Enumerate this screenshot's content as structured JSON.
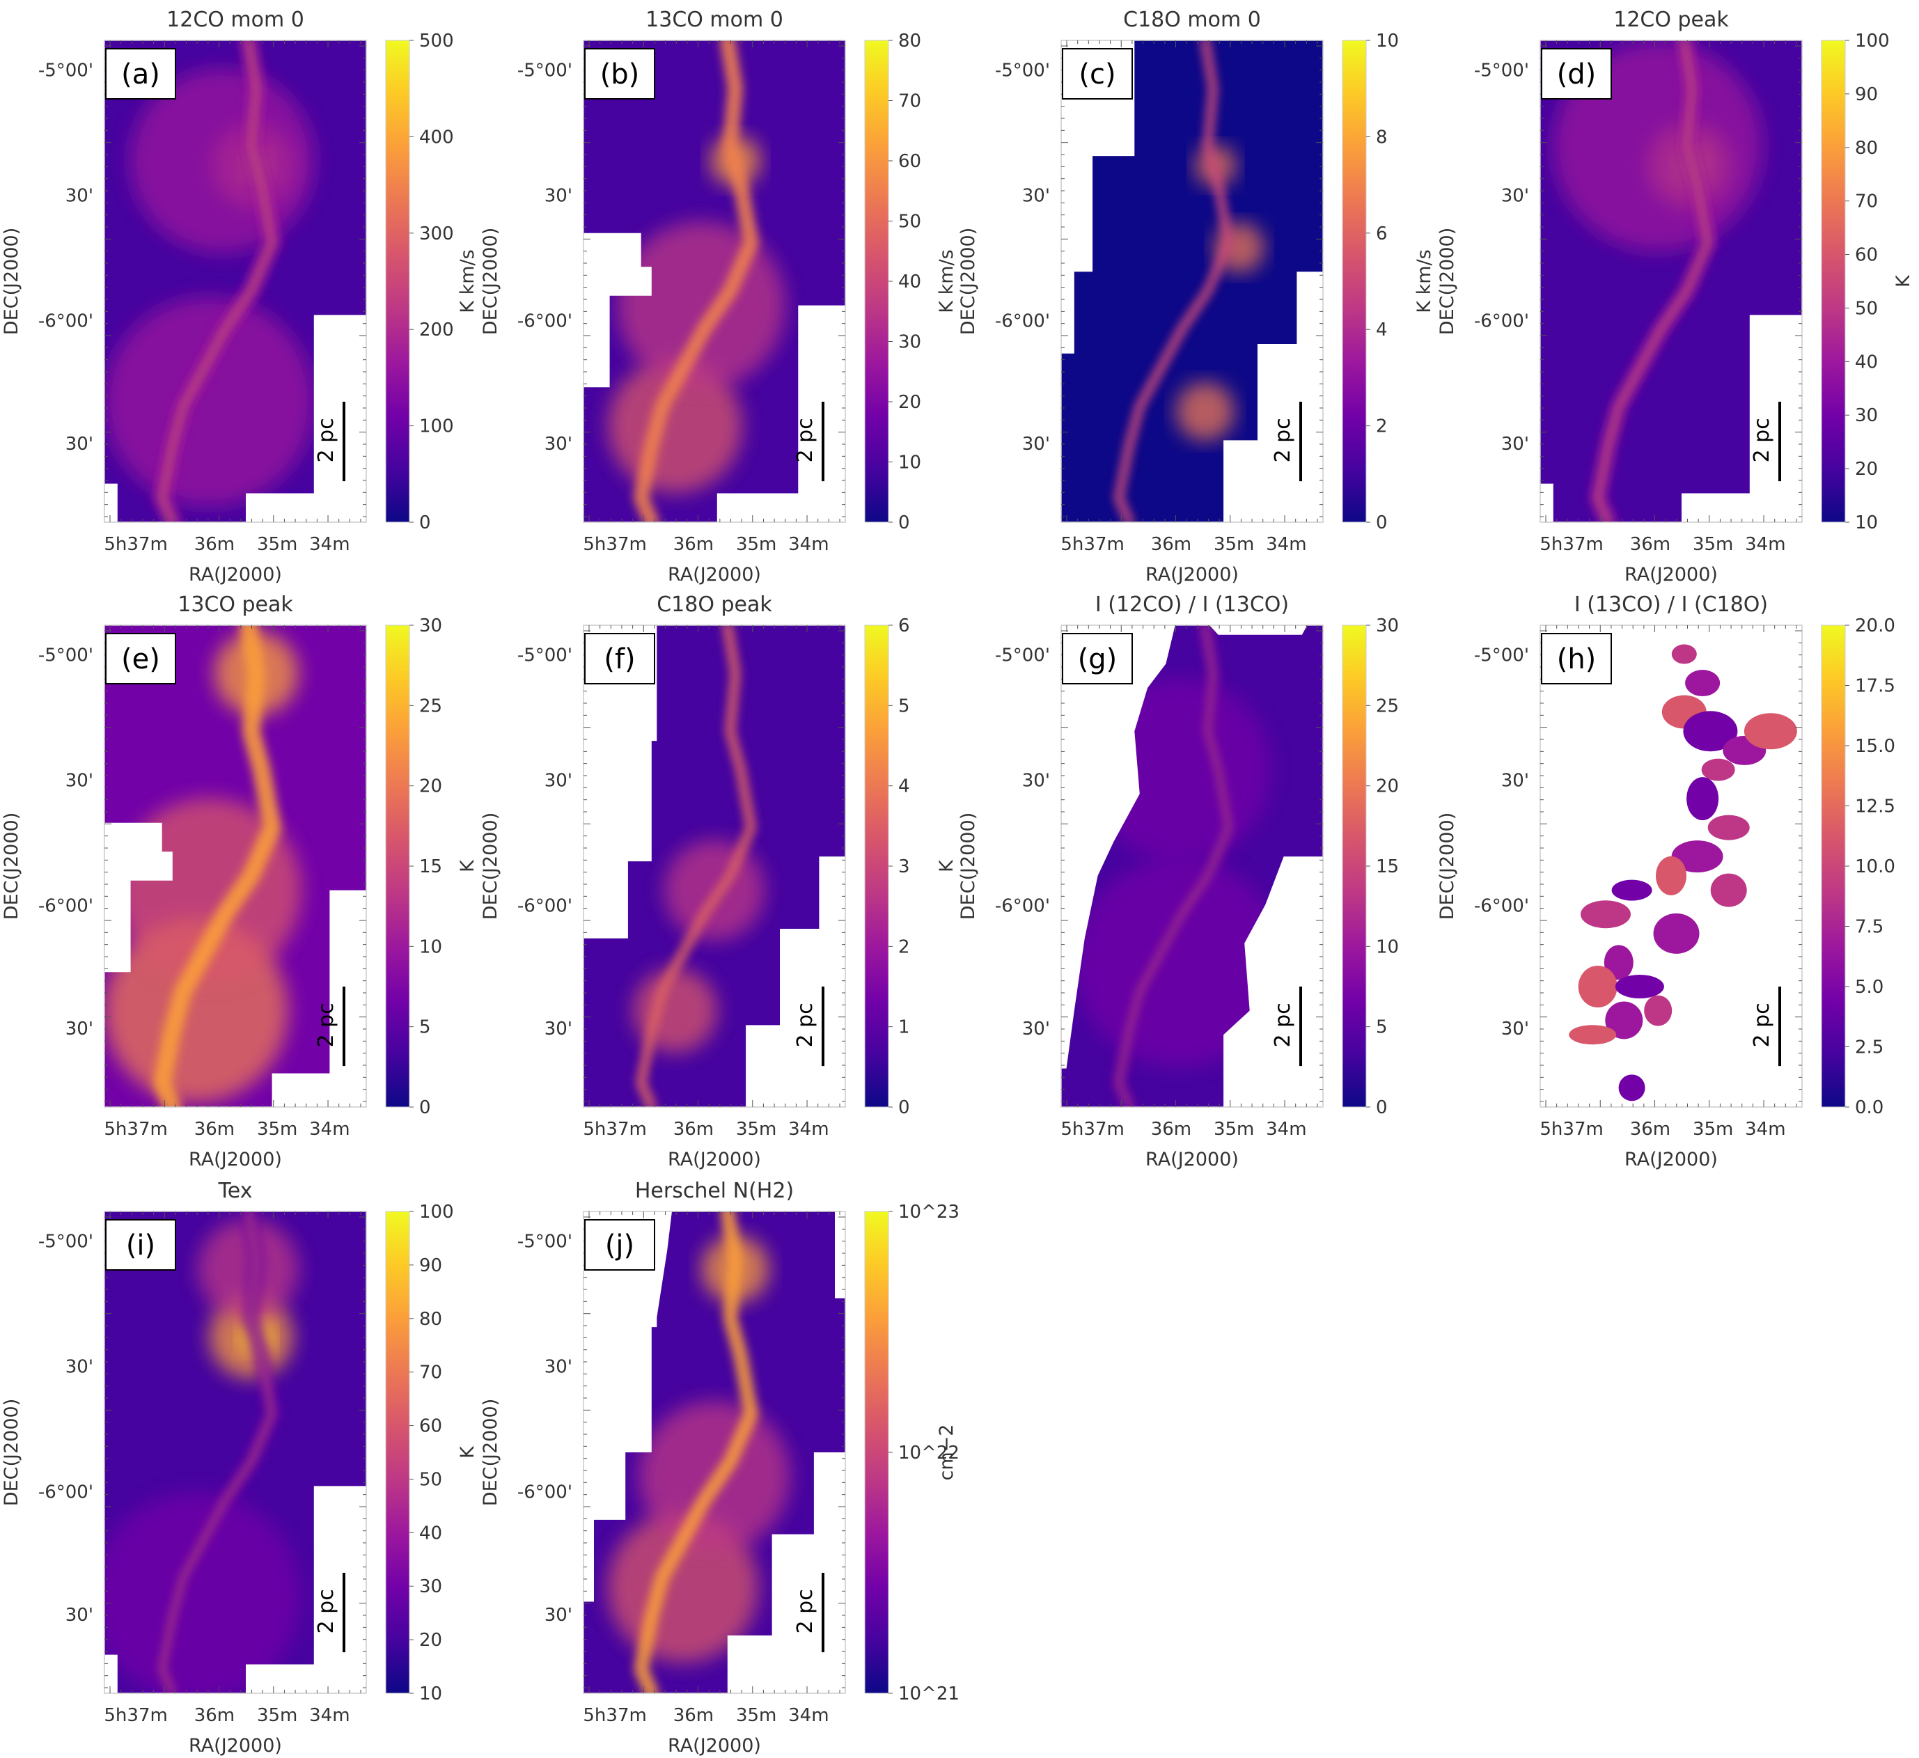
{
  "colors": {
    "cmap": [
      "#0d0887",
      "#46039f",
      "#7201a8",
      "#9c179e",
      "#bd3786",
      "#d8576b",
      "#ed7953",
      "#fb9f3a",
      "#fdca26",
      "#f0f921"
    ],
    "background": "#ffffff",
    "text": "#333333"
  },
  "axis_text": {
    "ylabel": "DEC(J2000)",
    "xlabel": "RA(J2000)",
    "yticks": [
      "-5°00'",
      "30'",
      "-6°00'",
      "30'"
    ],
    "xticks": [
      "5h37m",
      "36m",
      "35m",
      "34m"
    ],
    "scalebar": "2 pc"
  },
  "chart_data": [
    {
      "type": "heatmap",
      "panel": "(a)",
      "title": "12CO mom 0",
      "cbar_label": "K km/s",
      "cbar_ticks": [
        "500",
        "400",
        "300",
        "200",
        "100",
        "0"
      ],
      "clim": [
        0,
        500
      ],
      "map": "co12mom0"
    },
    {
      "type": "heatmap",
      "panel": "(b)",
      "title": "13CO mom 0",
      "cbar_label": "K km/s",
      "cbar_ticks": [
        "80",
        "70",
        "60",
        "50",
        "40",
        "30",
        "20",
        "10",
        "0"
      ],
      "clim": [
        0,
        80
      ],
      "map": "co13mom0"
    },
    {
      "type": "heatmap",
      "panel": "(c)",
      "title": "C18O mom 0",
      "cbar_label": "K km/s",
      "cbar_ticks": [
        "10",
        "8",
        "6",
        "4",
        "2",
        "0"
      ],
      "clim": [
        0,
        10
      ],
      "map": "c18omom0"
    },
    {
      "type": "heatmap",
      "panel": "(d)",
      "title": "12CO peak",
      "cbar_label": "K",
      "cbar_ticks": [
        "100",
        "90",
        "80",
        "70",
        "60",
        "50",
        "40",
        "30",
        "20",
        "10"
      ],
      "clim": [
        10,
        100
      ],
      "map": "co12peak"
    },
    {
      "type": "heatmap",
      "panel": "(e)",
      "title": "13CO peak",
      "cbar_label": "K",
      "cbar_ticks": [
        "30",
        "25",
        "20",
        "15",
        "10",
        "5",
        "0"
      ],
      "clim": [
        0,
        30
      ],
      "map": "co13peak"
    },
    {
      "type": "heatmap",
      "panel": "(f)",
      "title": "C18O peak",
      "cbar_label": "K",
      "cbar_ticks": [
        "6",
        "5",
        "4",
        "3",
        "2",
        "1",
        "0"
      ],
      "clim": [
        0,
        6
      ],
      "map": "c18opeak"
    },
    {
      "type": "heatmap",
      "panel": "(g)",
      "title": "I (12CO) / I (13CO)",
      "cbar_label": "",
      "cbar_ticks": [
        "30",
        "25",
        "20",
        "15",
        "10",
        "5",
        "0"
      ],
      "clim": [
        0,
        30
      ],
      "map": "ratio1213"
    },
    {
      "type": "heatmap",
      "panel": "(h)",
      "title": "I (13CO) / I (C18O)",
      "cbar_label": "",
      "cbar_ticks": [
        "20.0",
        "17.5",
        "15.0",
        "12.5",
        "10.0",
        "7.5",
        "5.0",
        "2.5",
        "0.0"
      ],
      "clim": [
        0,
        20
      ],
      "map": "ratio1318"
    },
    {
      "type": "heatmap",
      "panel": "(i)",
      "title": "Tex",
      "cbar_label": "K",
      "cbar_ticks": [
        "100",
        "90",
        "80",
        "70",
        "60",
        "50",
        "40",
        "30",
        "20",
        "10"
      ],
      "clim": [
        10,
        100
      ],
      "map": "tex"
    },
    {
      "type": "heatmap",
      "panel": "(j)",
      "title": "Herschel N(H2)",
      "cbar_label": "cm−2",
      "cbar_ticks": [
        "10^23",
        "10^22",
        "10^21"
      ],
      "clim": [
        1e+21,
        1e+23
      ],
      "log": true,
      "map": "nh2"
    }
  ]
}
